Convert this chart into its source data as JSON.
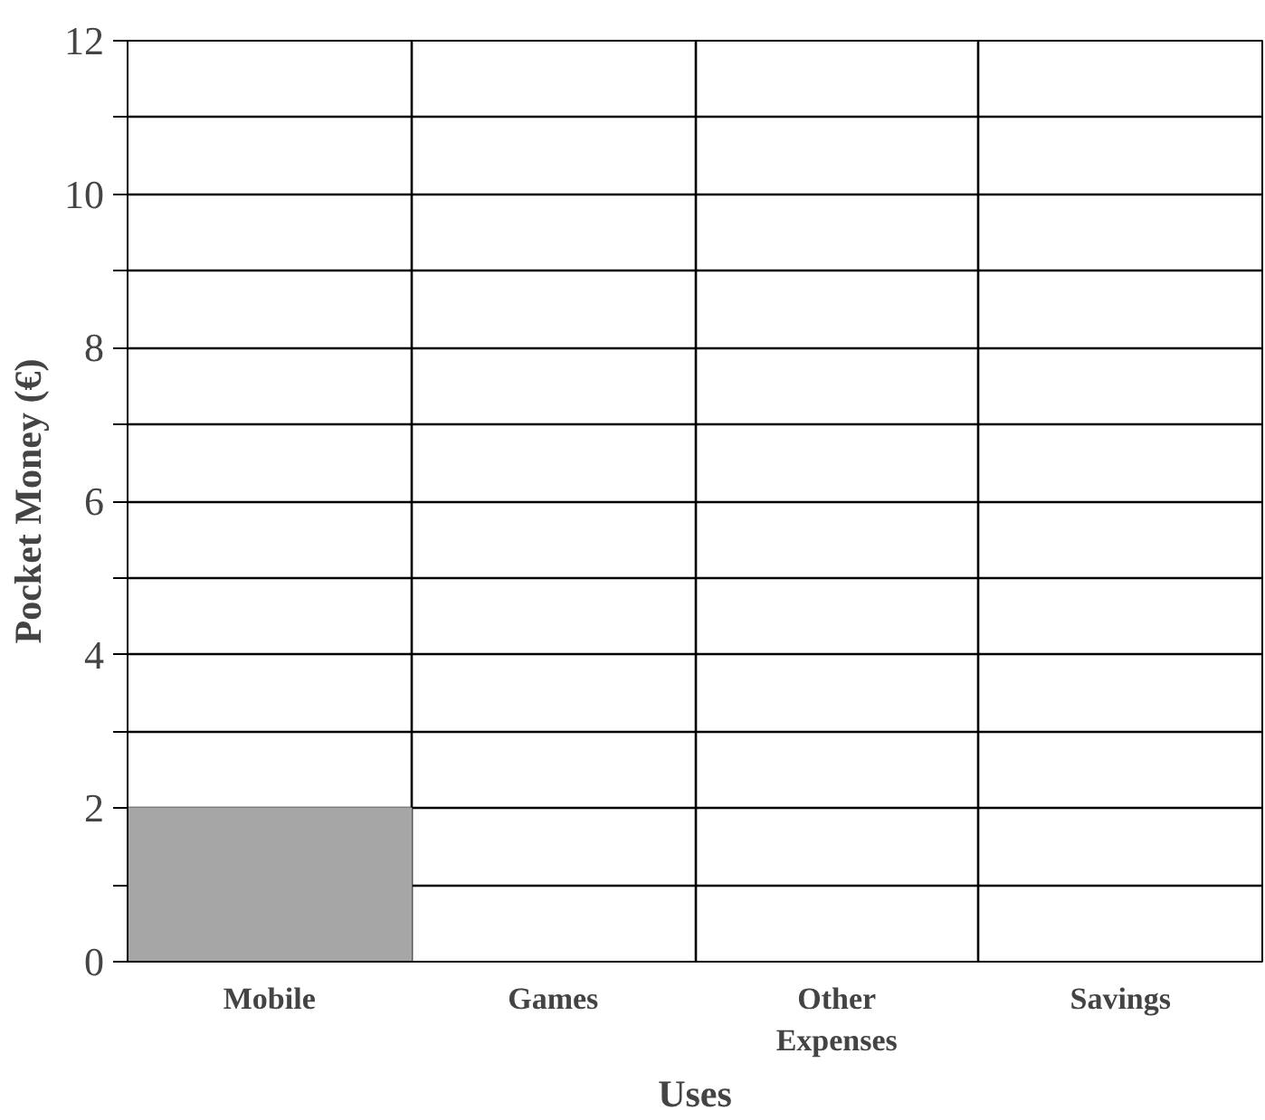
{
  "chart_data": {
    "type": "bar",
    "xlabel": "Uses",
    "ylabel": "Pocket Money (€)",
    "categories": [
      "Mobile",
      "Games",
      "Other Expenses",
      "Savings"
    ],
    "values": [
      2,
      null,
      null,
      null
    ],
    "color": "#a6a6a6",
    "ylim": [
      0,
      12
    ],
    "yticks": [
      0,
      {
        "value": 1,
        "label": null
      },
      2,
      {
        "value": 3,
        "label": null
      },
      4,
      {
        "value": 5,
        "label": null
      },
      6,
      {
        "value": 7,
        "label": null
      },
      8,
      {
        "value": 9,
        "label": null
      },
      10,
      {
        "value": 11,
        "label": null
      },
      12
    ],
    "grid": true
  }
}
